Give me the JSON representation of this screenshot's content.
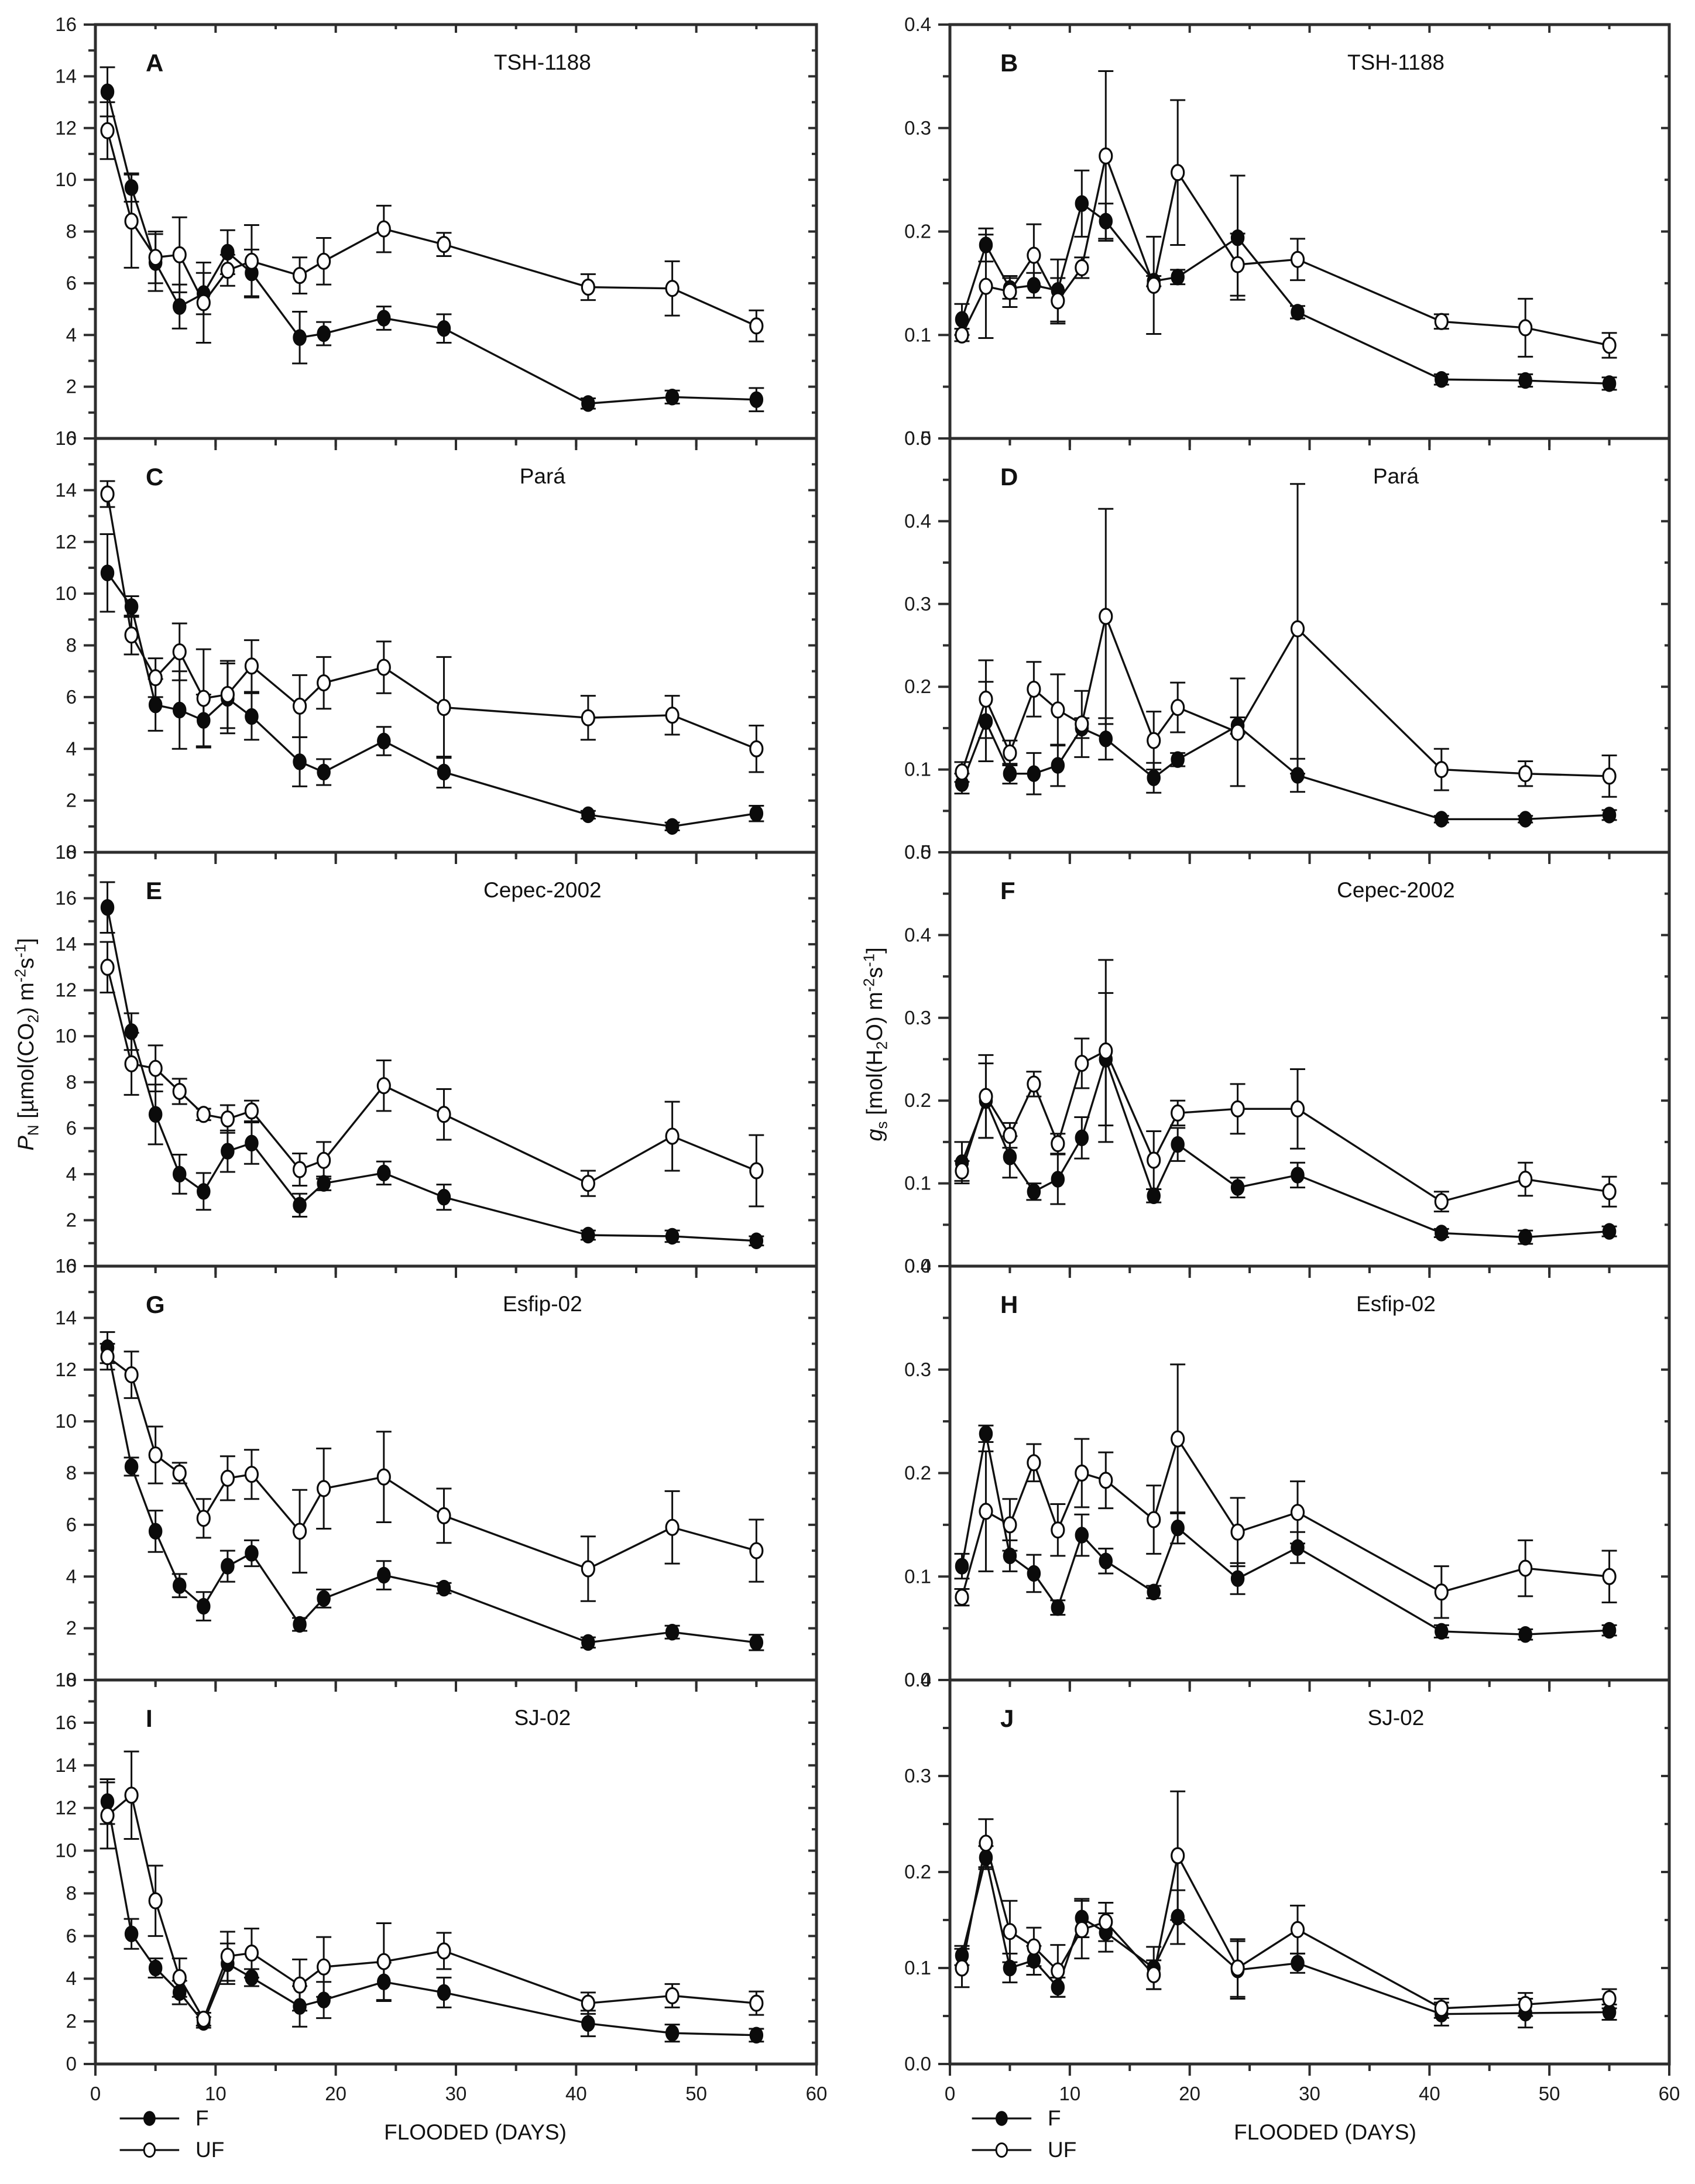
{
  "legend": {
    "f_label": "F",
    "uf_label": "UF"
  },
  "x_axis": {
    "label": "FLOODED (DAYS)",
    "lim": [
      0,
      60
    ],
    "ticks": [
      0,
      10,
      20,
      30,
      40,
      50,
      60
    ],
    "minor_step": 5,
    "days": [
      1,
      3,
      5,
      7,
      9,
      11,
      13,
      17,
      19,
      24,
      29,
      41,
      48,
      55
    ]
  },
  "y_axis_left": {
    "symbol": "P",
    "symbol_sub": "N",
    "seg1": " [µmol(CO",
    "sub2": "2",
    "seg2": ") m",
    "sup1": "-2",
    "seg3": "s",
    "sup2": "-1",
    "seg4": "]"
  },
  "y_axis_right": {
    "symbol": "g",
    "symbol_sub": "s",
    "seg1": " [mol(H",
    "sub2": "2",
    "seg2": "O) m",
    "sup1": "-2",
    "seg3": "s",
    "sup2": "-1",
    "seg4": "]"
  },
  "chart_data": [
    {
      "panel_letter": "A",
      "title": "TSH-1188",
      "type": "line",
      "quantity": "PN",
      "ylim": [
        0,
        16
      ],
      "ytick_step": 2,
      "ytick_minor": 1,
      "ytick_decimals": 0,
      "series": [
        {
          "name": "F",
          "marker": "filled-circle",
          "values": [
            13.4,
            9.7,
            6.8,
            5.1,
            5.6,
            7.2,
            6.4,
            3.9,
            4.05,
            4.65,
            4.25,
            1.35,
            1.6,
            1.5
          ],
          "errors": [
            0.95,
            0.55,
            1.1,
            0.85,
            0.8,
            0.85,
            0.9,
            1.0,
            0.45,
            0.45,
            0.55,
            0.2,
            0.25,
            0.45
          ]
        },
        {
          "name": "UF",
          "marker": "open-circle",
          "values": [
            11.9,
            8.4,
            7.0,
            7.1,
            5.25,
            6.5,
            6.85,
            6.3,
            6.85,
            8.1,
            7.5,
            5.85,
            5.8,
            4.35
          ],
          "errors": [
            1.1,
            1.8,
            1.0,
            1.45,
            1.55,
            0.6,
            1.4,
            0.7,
            0.9,
            0.9,
            0.45,
            0.5,
            1.05,
            0.6
          ]
        }
      ]
    },
    {
      "panel_letter": "B",
      "title": "TSH-1188",
      "type": "line",
      "quantity": "gs",
      "ylim": [
        0,
        0.4
      ],
      "ytick_step": 0.1,
      "ytick_minor": 0.05,
      "ytick_decimals": 1,
      "series": [
        {
          "name": "F",
          "marker": "filled-circle",
          "values": [
            0.115,
            0.187,
            0.145,
            0.148,
            0.143,
            0.227,
            0.21,
            0.152,
            0.156,
            0.194,
            0.122,
            0.057,
            0.056,
            0.053
          ],
          "errors": [
            0.015,
            0.016,
            0.01,
            0.012,
            0.03,
            0.032,
            0.017,
            0.005,
            0.007,
            0.06,
            0.006,
            0.005,
            0.006,
            0.006
          ]
        },
        {
          "name": "UF",
          "marker": "open-circle",
          "values": [
            0.1,
            0.147,
            0.142,
            0.177,
            0.133,
            0.165,
            0.273,
            0.148,
            0.257,
            0.168,
            0.173,
            0.113,
            0.107,
            0.09
          ],
          "errors": [
            0.006,
            0.05,
            0.015,
            0.03,
            0.022,
            0.01,
            0.082,
            0.047,
            0.07,
            0.03,
            0.02,
            0.007,
            0.028,
            0.012
          ]
        }
      ]
    },
    {
      "panel_letter": "C",
      "title": "Pará",
      "type": "line",
      "quantity": "PN",
      "ylim": [
        0,
        16
      ],
      "ytick_step": 2,
      "ytick_minor": 1,
      "ytick_decimals": 0,
      "series": [
        {
          "name": "F",
          "marker": "filled-circle",
          "values": [
            10.8,
            9.5,
            5.7,
            5.5,
            5.1,
            5.95,
            5.25,
            3.5,
            3.1,
            4.3,
            3.1,
            1.45,
            1.0,
            1.5
          ],
          "errors": [
            1.5,
            0.4,
            1.0,
            1.5,
            1.0,
            1.35,
            0.9,
            0.95,
            0.5,
            0.55,
            0.6,
            0.15,
            0.15,
            0.3
          ]
        },
        {
          "name": "UF",
          "marker": "open-circle",
          "values": [
            13.85,
            8.4,
            6.75,
            7.75,
            5.95,
            6.1,
            7.2,
            5.65,
            6.55,
            7.15,
            5.6,
            5.2,
            5.3,
            4.0
          ],
          "errors": [
            0.5,
            0.75,
            0.75,
            1.1,
            1.9,
            1.3,
            1.0,
            1.2,
            1.0,
            1.0,
            1.95,
            0.85,
            0.75,
            0.9
          ]
        }
      ]
    },
    {
      "panel_letter": "D",
      "title": "Pará",
      "type": "line",
      "quantity": "gs",
      "ylim": [
        0,
        0.5
      ],
      "ytick_step": 0.1,
      "ytick_minor": 0.05,
      "ytick_decimals": 1,
      "series": [
        {
          "name": "F",
          "marker": "filled-circle",
          "values": [
            0.083,
            0.158,
            0.095,
            0.095,
            0.105,
            0.15,
            0.137,
            0.09,
            0.112,
            0.153,
            0.093,
            0.04,
            0.04,
            0.045
          ],
          "errors": [
            0.012,
            0.048,
            0.012,
            0.025,
            0.025,
            0.012,
            0.025,
            0.018,
            0.008,
            0.01,
            0.02,
            0.004,
            0.004,
            0.006
          ]
        },
        {
          "name": "UF",
          "marker": "open-circle",
          "values": [
            0.097,
            0.185,
            0.12,
            0.197,
            0.172,
            0.155,
            0.285,
            0.135,
            0.175,
            0.145,
            0.27,
            0.1,
            0.095,
            0.092
          ],
          "errors": [
            0.012,
            0.047,
            0.015,
            0.033,
            0.043,
            0.04,
            0.13,
            0.035,
            0.03,
            0.065,
            0.175,
            0.025,
            0.015,
            0.025
          ]
        }
      ]
    },
    {
      "panel_letter": "E",
      "title": "Cepec-2002",
      "type": "line",
      "quantity": "PN",
      "ylim": [
        0,
        18
      ],
      "ytick_step": 2,
      "ytick_minor": 1,
      "ytick_decimals": 0,
      "series": [
        {
          "name": "F",
          "marker": "filled-circle",
          "values": [
            15.6,
            10.2,
            6.6,
            4.0,
            3.25,
            5.0,
            5.35,
            2.65,
            3.6,
            4.05,
            3.0,
            1.35,
            1.3,
            1.1
          ],
          "errors": [
            1.1,
            0.8,
            1.3,
            0.85,
            0.8,
            0.9,
            0.9,
            0.5,
            0.3,
            0.5,
            0.55,
            0.2,
            0.25,
            0.2
          ]
        },
        {
          "name": "UF",
          "marker": "open-circle",
          "values": [
            13.0,
            8.8,
            8.6,
            7.6,
            6.6,
            6.4,
            6.75,
            4.2,
            4.6,
            7.85,
            6.6,
            3.6,
            5.65,
            4.15
          ],
          "errors": [
            1.1,
            1.35,
            1.0,
            0.55,
            0.25,
            0.6,
            0.45,
            0.7,
            0.8,
            1.1,
            1.1,
            0.55,
            1.5,
            1.55
          ]
        }
      ]
    },
    {
      "panel_letter": "F",
      "title": "Cepec-2002",
      "type": "line",
      "quantity": "gs",
      "ylim": [
        0,
        0.5
      ],
      "ytick_step": 0.1,
      "ytick_minor": 0.05,
      "ytick_decimals": 1,
      "series": [
        {
          "name": "F",
          "marker": "filled-circle",
          "values": [
            0.125,
            0.2,
            0.132,
            0.09,
            0.105,
            0.155,
            0.25,
            0.085,
            0.147,
            0.095,
            0.11,
            0.04,
            0.035,
            0.042
          ],
          "errors": [
            0.025,
            0.045,
            0.025,
            0.01,
            0.03,
            0.025,
            0.08,
            0.008,
            0.02,
            0.012,
            0.015,
            0.005,
            0.008,
            0.006
          ]
        },
        {
          "name": "UF",
          "marker": "open-circle",
          "values": [
            0.115,
            0.205,
            0.158,
            0.22,
            0.148,
            0.245,
            0.26,
            0.128,
            0.185,
            0.19,
            0.19,
            0.078,
            0.105,
            0.09
          ],
          "errors": [
            0.012,
            0.05,
            0.015,
            0.015,
            0.012,
            0.03,
            0.11,
            0.035,
            0.015,
            0.03,
            0.048,
            0.012,
            0.02,
            0.018
          ]
        }
      ]
    },
    {
      "panel_letter": "G",
      "title": "Esfip-02",
      "type": "line",
      "quantity": "PN",
      "ylim": [
        0,
        16
      ],
      "ytick_step": 2,
      "ytick_minor": 1,
      "ytick_decimals": 0,
      "series": [
        {
          "name": "F",
          "marker": "filled-circle",
          "values": [
            12.85,
            8.25,
            5.75,
            3.65,
            2.85,
            4.4,
            4.9,
            2.15,
            3.15,
            4.05,
            3.55,
            1.45,
            1.85,
            1.45
          ],
          "errors": [
            0.6,
            0.35,
            0.8,
            0.45,
            0.55,
            0.6,
            0.5,
            0.25,
            0.35,
            0.55,
            0.2,
            0.2,
            0.25,
            0.3
          ]
        },
        {
          "name": "UF",
          "marker": "open-circle",
          "values": [
            12.5,
            11.8,
            8.7,
            8.0,
            6.25,
            7.8,
            7.95,
            5.75,
            7.4,
            7.85,
            6.35,
            4.3,
            5.9,
            5.0
          ],
          "errors": [
            0.5,
            0.9,
            1.1,
            0.4,
            0.75,
            0.85,
            0.95,
            1.6,
            1.55,
            1.75,
            1.05,
            1.25,
            1.4,
            1.2
          ]
        }
      ]
    },
    {
      "panel_letter": "H",
      "title": "Esfip-02",
      "type": "line",
      "quantity": "gs",
      "ylim": [
        0,
        0.4
      ],
      "ytick_step": 0.1,
      "ytick_minor": 0.05,
      "ytick_decimals": 1,
      "series": [
        {
          "name": "F",
          "marker": "filled-circle",
          "values": [
            0.11,
            0.238,
            0.12,
            0.103,
            0.07,
            0.14,
            0.115,
            0.085,
            0.147,
            0.098,
            0.128,
            0.047,
            0.044,
            0.048
          ],
          "errors": [
            0.012,
            0.008,
            0.015,
            0.018,
            0.007,
            0.02,
            0.012,
            0.006,
            0.015,
            0.015,
            0.015,
            0.006,
            0.005,
            0.005
          ]
        },
        {
          "name": "UF",
          "marker": "open-circle",
          "values": [
            0.08,
            0.163,
            0.15,
            0.21,
            0.145,
            0.2,
            0.193,
            0.155,
            0.233,
            0.143,
            0.162,
            0.085,
            0.108,
            0.1
          ],
          "errors": [
            0.008,
            0.058,
            0.025,
            0.018,
            0.025,
            0.033,
            0.027,
            0.033,
            0.072,
            0.033,
            0.03,
            0.025,
            0.027,
            0.025
          ]
        }
      ]
    },
    {
      "panel_letter": "I",
      "title": "SJ-02",
      "type": "line",
      "quantity": "PN",
      "ylim": [
        0,
        18
      ],
      "ytick_step": 2,
      "ytick_minor": 1,
      "ytick_decimals": 0,
      "series": [
        {
          "name": "F",
          "marker": "filled-circle",
          "values": [
            12.3,
            6.1,
            4.5,
            3.35,
            1.95,
            4.7,
            4.05,
            2.7,
            3.0,
            3.85,
            3.35,
            1.9,
            1.45,
            1.35
          ],
          "errors": [
            1.05,
            0.7,
            0.45,
            0.55,
            0.25,
            0.95,
            0.4,
            0.95,
            0.85,
            0.9,
            0.7,
            0.6,
            0.4,
            0.3
          ]
        },
        {
          "name": "UF",
          "marker": "open-circle",
          "values": [
            11.65,
            12.6,
            7.65,
            4.05,
            2.1,
            5.05,
            5.2,
            3.7,
            4.55,
            4.8,
            5.3,
            2.85,
            3.2,
            2.85
          ],
          "errors": [
            1.55,
            2.05,
            1.65,
            0.9,
            0.3,
            1.15,
            1.15,
            1.2,
            1.4,
            1.8,
            0.85,
            0.5,
            0.55,
            0.55
          ]
        }
      ]
    },
    {
      "panel_letter": "J",
      "title": "SJ-02",
      "type": "line",
      "quantity": "gs",
      "ylim": [
        0,
        0.4
      ],
      "ytick_step": 0.1,
      "ytick_minor": 0.05,
      "ytick_decimals": 1,
      "series": [
        {
          "name": "F",
          "marker": "filled-circle",
          "values": [
            0.113,
            0.215,
            0.1,
            0.108,
            0.08,
            0.152,
            0.137,
            0.1,
            0.153,
            0.098,
            0.105,
            0.052,
            0.053,
            0.054
          ],
          "errors": [
            0.01,
            0.012,
            0.015,
            0.015,
            0.01,
            0.02,
            0.02,
            0.022,
            0.028,
            0.03,
            0.01,
            0.012,
            0.015,
            0.008
          ]
        },
        {
          "name": "UF",
          "marker": "open-circle",
          "values": [
            0.1,
            0.23,
            0.138,
            0.122,
            0.097,
            0.14,
            0.148,
            0.093,
            0.217,
            0.1,
            0.14,
            0.058,
            0.062,
            0.068
          ],
          "errors": [
            0.02,
            0.025,
            0.032,
            0.02,
            0.027,
            0.03,
            0.02,
            0.015,
            0.067,
            0.03,
            0.025,
            0.01,
            0.012,
            0.01
          ]
        }
      ]
    }
  ]
}
